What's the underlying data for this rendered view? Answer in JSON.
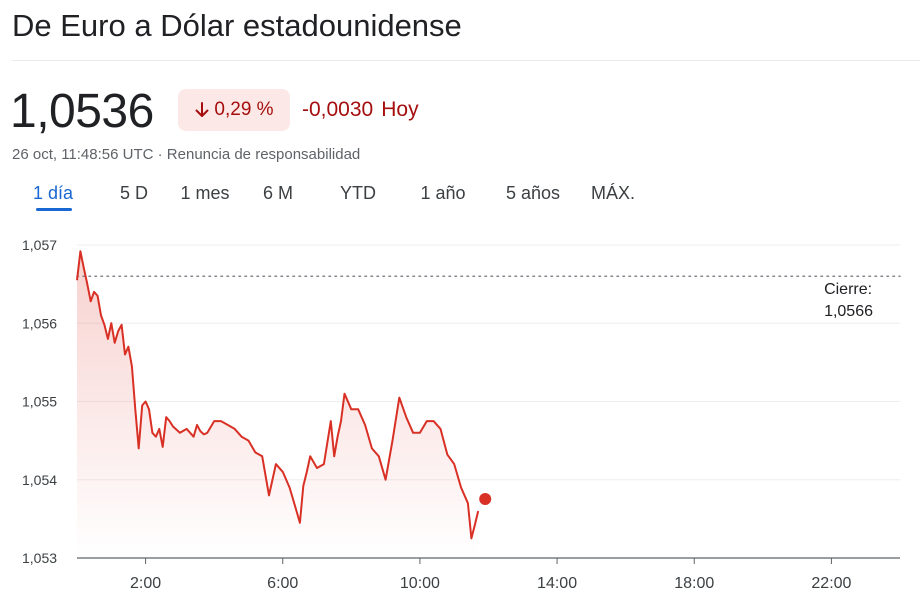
{
  "title": "De Euro a Dólar estadounidense",
  "price": "1,0536",
  "change_percent": "0,29 %",
  "change_absolute": "-0,0030",
  "change_period": "Hoy",
  "timestamp": "26 oct, 11:48:56 UTC · Renuncia de responsabilidad",
  "tabs": [
    {
      "label": "1 día",
      "active": true
    },
    {
      "label": "5 D",
      "active": false
    },
    {
      "label": "1 mes",
      "active": false
    },
    {
      "label": "6 M",
      "active": false
    },
    {
      "label": "YTD",
      "active": false
    },
    {
      "label": "1 año",
      "active": false
    },
    {
      "label": "5 años",
      "active": false
    },
    {
      "label": "MÁX.",
      "active": false
    }
  ],
  "previous_close": {
    "label": "Cierre:",
    "value": "1,0566"
  },
  "colors": {
    "down": "#a50e0e",
    "line": "#d93025",
    "active_tab": "#1967d2",
    "chip_bg": "#fce8e6"
  },
  "icons": {
    "change_direction": "arrow-down-icon"
  },
  "chart_data": {
    "type": "line",
    "x_unit": "hours UTC",
    "xlim": [
      0,
      24
    ],
    "ylim": [
      1.053,
      1.057
    ],
    "grid": true,
    "x_ticks": [
      {
        "value": 2,
        "label": "2:00"
      },
      {
        "value": 6,
        "label": "6:00"
      },
      {
        "value": 10,
        "label": "10:00"
      },
      {
        "value": 14,
        "label": "14:00"
      },
      {
        "value": 18,
        "label": "18:00"
      },
      {
        "value": 22,
        "label": "22:00"
      }
    ],
    "y_ticks": [
      {
        "value": 1.053,
        "label": "1,053"
      },
      {
        "value": 1.054,
        "label": "1,054"
      },
      {
        "value": 1.055,
        "label": "1,055"
      },
      {
        "value": 1.056,
        "label": "1,056"
      },
      {
        "value": 1.057,
        "label": "1,057"
      }
    ],
    "previous_close": 1.0566,
    "series": [
      {
        "x": [
          0,
          0.1,
          0.2,
          0.3,
          0.4,
          0.5,
          0.6,
          0.7,
          0.8,
          0.9,
          1.0,
          1.1,
          1.2,
          1.3,
          1.4,
          1.5,
          1.6,
          1.7,
          1.8,
          1.9,
          2.0,
          2.1,
          2.2,
          2.3,
          2.4,
          2.5,
          2.6,
          2.7,
          2.8,
          3.0,
          3.2,
          3.4,
          3.5,
          3.6,
          3.7,
          3.8,
          4.0,
          4.2,
          4.4,
          4.6,
          4.8,
          5.0,
          5.2,
          5.4,
          5.6,
          5.8,
          6.0,
          6.2,
          6.4,
          6.5,
          6.6,
          6.7,
          6.8,
          7.0,
          7.2,
          7.4,
          7.5,
          7.6,
          7.7,
          7.8,
          8.0,
          8.2,
          8.4,
          8.6,
          8.8,
          9.0,
          9.2,
          9.4,
          9.6,
          9.8,
          10.0,
          10.2,
          10.4,
          10.6,
          10.8,
          11.0,
          11.2,
          11.4,
          11.5,
          11.6,
          11.7
        ],
        "y": [
          1.05655,
          1.05692,
          1.0567,
          1.0565,
          1.05628,
          1.0564,
          1.05635,
          1.0561,
          1.05598,
          1.0558,
          1.056,
          1.05575,
          1.0559,
          1.05598,
          1.0556,
          1.0557,
          1.05545,
          1.0549,
          1.0544,
          1.05495,
          1.055,
          1.0549,
          1.0546,
          1.05455,
          1.05465,
          1.05442,
          1.0548,
          1.05475,
          1.05468,
          1.0546,
          1.05465,
          1.05455,
          1.0547,
          1.05462,
          1.05458,
          1.0546,
          1.05475,
          1.05475,
          1.0547,
          1.05465,
          1.05455,
          1.0545,
          1.05435,
          1.0543,
          1.0538,
          1.0542,
          1.0541,
          1.0539,
          1.0536,
          1.05345,
          1.05392,
          1.0541,
          1.0543,
          1.05415,
          1.0542,
          1.05475,
          1.0543,
          1.05455,
          1.05475,
          1.0551,
          1.0549,
          1.0549,
          1.0547,
          1.0544,
          1.0543,
          1.054,
          1.0545,
          1.05505,
          1.0548,
          1.0546,
          1.0546,
          1.05475,
          1.05475,
          1.05465,
          1.05432,
          1.0542,
          1.0539,
          1.0537,
          1.05325,
          1.05342,
          1.0536
        ]
      }
    ]
  }
}
